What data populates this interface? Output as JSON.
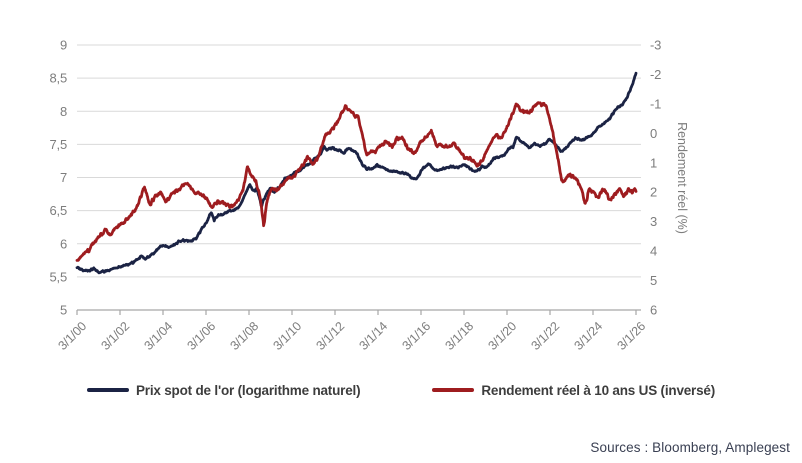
{
  "chart_data": {
    "type": "line",
    "title": "",
    "x_axis": {
      "ticks": [
        {
          "label": "3/1/00",
          "year": 2000.17
        },
        {
          "label": "3/1/02",
          "year": 2002.17
        },
        {
          "label": "3/1/04",
          "year": 2004.17
        },
        {
          "label": "3/1/06",
          "year": 2006.17
        },
        {
          "label": "3/1/08",
          "year": 2008.17
        },
        {
          "label": "3/1/10",
          "year": 2010.17
        },
        {
          "label": "3/1/12",
          "year": 2012.17
        },
        {
          "label": "3/1/14",
          "year": 2014.17
        },
        {
          "label": "3/1/16",
          "year": 2016.17
        },
        {
          "label": "3/1/18",
          "year": 2018.17
        },
        {
          "label": "3/1/20",
          "year": 2020.17
        },
        {
          "label": "3/1/22",
          "year": 2022.17
        },
        {
          "label": "3/1/24",
          "year": 2024.17
        },
        {
          "label": "3/1/26",
          "year": 2026.17
        }
      ],
      "range": [
        2000.17,
        2026.4
      ]
    },
    "left_axis": {
      "label": "",
      "range": [
        5,
        9
      ],
      "ticks": [
        {
          "value": 9,
          "label": "9"
        },
        {
          "value": 8.5,
          "label": "8,5"
        },
        {
          "value": 8,
          "label": "8"
        },
        {
          "value": 7.5,
          "label": "7,5"
        },
        {
          "value": 7,
          "label": "7"
        },
        {
          "value": 6.5,
          "label": "6,5"
        },
        {
          "value": 6,
          "label": "6"
        },
        {
          "value": 5.5,
          "label": "5,5"
        },
        {
          "value": 5,
          "label": "5"
        }
      ]
    },
    "right_axis": {
      "label": "Rendement réel (%)",
      "range": [
        -3,
        6
      ],
      "inverted": true,
      "ticks": [
        {
          "value": -3,
          "label": "-3"
        },
        {
          "value": -2,
          "label": "-2"
        },
        {
          "value": -1,
          "label": "-1"
        },
        {
          "value": 0,
          "label": "0"
        },
        {
          "value": 1,
          "label": "1"
        },
        {
          "value": 2,
          "label": "2"
        },
        {
          "value": 3,
          "label": "3"
        },
        {
          "value": 4,
          "label": "4"
        },
        {
          "value": 5,
          "label": "5"
        },
        {
          "value": 6,
          "label": "6"
        }
      ]
    },
    "grid": true,
    "legend_position": "bottom",
    "colors": {
      "gold": "#1b2344",
      "yield": "#9e1c1f",
      "gridline": "#d9d9d9",
      "axis": "#a6a6a6",
      "tick_text": "#7d7d7d"
    },
    "series": [
      {
        "name": "Prix spot de l'or (logarithme naturel)",
        "color": "#1b2344",
        "axis": "left",
        "points": [
          [
            2000.17,
            5.65
          ],
          [
            2000.4,
            5.61
          ],
          [
            2000.7,
            5.59
          ],
          [
            2000.95,
            5.62
          ],
          [
            2001.2,
            5.57
          ],
          [
            2001.5,
            5.58
          ],
          [
            2001.8,
            5.62
          ],
          [
            2002.1,
            5.64
          ],
          [
            2002.4,
            5.68
          ],
          [
            2002.75,
            5.71
          ],
          [
            2003.0,
            5.77
          ],
          [
            2003.15,
            5.82
          ],
          [
            2003.35,
            5.78
          ],
          [
            2003.6,
            5.82
          ],
          [
            2003.85,
            5.89
          ],
          [
            2004.05,
            5.96
          ],
          [
            2004.3,
            5.98
          ],
          [
            2004.45,
            5.94
          ],
          [
            2004.7,
            5.99
          ],
          [
            2004.95,
            6.04
          ],
          [
            2005.2,
            6.05
          ],
          [
            2005.45,
            6.04
          ],
          [
            2005.7,
            6.08
          ],
          [
            2005.95,
            6.21
          ],
          [
            2006.2,
            6.33
          ],
          [
            2006.4,
            6.48
          ],
          [
            2006.55,
            6.36
          ],
          [
            2006.75,
            6.43
          ],
          [
            2006.95,
            6.44
          ],
          [
            2007.2,
            6.49
          ],
          [
            2007.45,
            6.49
          ],
          [
            2007.7,
            6.55
          ],
          [
            2007.95,
            6.71
          ],
          [
            2008.2,
            6.89
          ],
          [
            2008.35,
            6.79
          ],
          [
            2008.55,
            6.83
          ],
          [
            2008.75,
            6.57
          ],
          [
            2008.85,
            6.66
          ],
          [
            2009.0,
            6.76
          ],
          [
            2009.15,
            6.83
          ],
          [
            2009.35,
            6.79
          ],
          [
            2009.6,
            6.86
          ],
          [
            2009.85,
            6.99
          ],
          [
            2010.1,
            7.01
          ],
          [
            2010.35,
            7.08
          ],
          [
            2010.55,
            7.11
          ],
          [
            2010.8,
            7.18
          ],
          [
            2011.0,
            7.21
          ],
          [
            2011.2,
            7.27
          ],
          [
            2011.45,
            7.33
          ],
          [
            2011.65,
            7.47
          ],
          [
            2011.8,
            7.41
          ],
          [
            2011.95,
            7.45
          ],
          [
            2012.15,
            7.43
          ],
          [
            2012.35,
            7.41
          ],
          [
            2012.6,
            7.37
          ],
          [
            2012.8,
            7.45
          ],
          [
            2013.0,
            7.42
          ],
          [
            2013.2,
            7.35
          ],
          [
            2013.45,
            7.2
          ],
          [
            2013.65,
            7.13
          ],
          [
            2013.9,
            7.14
          ],
          [
            2014.15,
            7.19
          ],
          [
            2014.45,
            7.15
          ],
          [
            2014.75,
            7.09
          ],
          [
            2014.95,
            7.1
          ],
          [
            2015.2,
            7.08
          ],
          [
            2015.5,
            7.05
          ],
          [
            2015.75,
            7.0
          ],
          [
            2015.95,
            6.97
          ],
          [
            2016.2,
            7.11
          ],
          [
            2016.5,
            7.21
          ],
          [
            2016.8,
            7.13
          ],
          [
            2017.0,
            7.11
          ],
          [
            2017.3,
            7.14
          ],
          [
            2017.6,
            7.17
          ],
          [
            2017.9,
            7.15
          ],
          [
            2018.2,
            7.2
          ],
          [
            2018.5,
            7.12
          ],
          [
            2018.75,
            7.09
          ],
          [
            2019.0,
            7.16
          ],
          [
            2019.3,
            7.17
          ],
          [
            2019.55,
            7.29
          ],
          [
            2019.85,
            7.31
          ],
          [
            2020.1,
            7.35
          ],
          [
            2020.25,
            7.43
          ],
          [
            2020.45,
            7.46
          ],
          [
            2020.6,
            7.62
          ],
          [
            2020.8,
            7.56
          ],
          [
            2021.0,
            7.52
          ],
          [
            2021.2,
            7.44
          ],
          [
            2021.45,
            7.51
          ],
          [
            2021.7,
            7.48
          ],
          [
            2021.95,
            7.5
          ],
          [
            2022.15,
            7.58
          ],
          [
            2022.4,
            7.51
          ],
          [
            2022.6,
            7.42
          ],
          [
            2022.75,
            7.39
          ],
          [
            2022.95,
            7.46
          ],
          [
            2023.15,
            7.54
          ],
          [
            2023.35,
            7.6
          ],
          [
            2023.6,
            7.56
          ],
          [
            2023.8,
            7.58
          ],
          [
            2023.95,
            7.62
          ],
          [
            2024.15,
            7.65
          ],
          [
            2024.35,
            7.74
          ],
          [
            2024.55,
            7.78
          ],
          [
            2024.75,
            7.83
          ],
          [
            2024.95,
            7.89
          ],
          [
            2025.1,
            7.97
          ],
          [
            2025.3,
            8.06
          ],
          [
            2025.5,
            8.09
          ],
          [
            2025.7,
            8.17
          ],
          [
            2025.85,
            8.28
          ],
          [
            2026.0,
            8.41
          ],
          [
            2026.1,
            8.5
          ],
          [
            2026.17,
            8.58
          ]
        ]
      },
      {
        "name": "Rendement réel à 10 ans US (inversé)",
        "color": "#9e1c1f",
        "axis": "right",
        "points": [
          [
            2000.17,
            4.35
          ],
          [
            2000.45,
            4.15
          ],
          [
            2000.75,
            3.95
          ],
          [
            2001.0,
            3.65
          ],
          [
            2001.25,
            3.45
          ],
          [
            2001.5,
            3.3
          ],
          [
            2001.75,
            3.45
          ],
          [
            2002.0,
            3.2
          ],
          [
            2002.3,
            3.05
          ],
          [
            2002.6,
            2.8
          ],
          [
            2002.9,
            2.55
          ],
          [
            2003.1,
            2.25
          ],
          [
            2003.3,
            1.8
          ],
          [
            2003.55,
            2.45
          ],
          [
            2003.8,
            2.15
          ],
          [
            2004.05,
            2.0
          ],
          [
            2004.3,
            2.3
          ],
          [
            2004.55,
            2.1
          ],
          [
            2004.8,
            1.95
          ],
          [
            2005.05,
            1.8
          ],
          [
            2005.3,
            1.7
          ],
          [
            2005.6,
            2.0
          ],
          [
            2005.9,
            2.05
          ],
          [
            2006.15,
            2.2
          ],
          [
            2006.45,
            2.5
          ],
          [
            2006.75,
            2.3
          ],
          [
            2007.0,
            2.35
          ],
          [
            2007.3,
            2.5
          ],
          [
            2007.6,
            2.35
          ],
          [
            2007.9,
            1.9
          ],
          [
            2008.1,
            1.15
          ],
          [
            2008.3,
            1.45
          ],
          [
            2008.5,
            1.65
          ],
          [
            2008.7,
            2.2
          ],
          [
            2008.85,
            3.15
          ],
          [
            2009.0,
            2.3
          ],
          [
            2009.2,
            1.85
          ],
          [
            2009.45,
            1.95
          ],
          [
            2009.7,
            1.75
          ],
          [
            2009.95,
            1.55
          ],
          [
            2010.2,
            1.5
          ],
          [
            2010.45,
            1.25
          ],
          [
            2010.7,
            1.05
          ],
          [
            2010.9,
            0.8
          ],
          [
            2011.1,
            1.05
          ],
          [
            2011.35,
            0.85
          ],
          [
            2011.55,
            0.45
          ],
          [
            2011.75,
            0.05
          ],
          [
            2011.95,
            -0.05
          ],
          [
            2012.15,
            -0.25
          ],
          [
            2012.4,
            -0.55
          ],
          [
            2012.65,
            -0.9
          ],
          [
            2012.85,
            -0.75
          ],
          [
            2013.05,
            -0.65
          ],
          [
            2013.25,
            -0.55
          ],
          [
            2013.45,
            0.1
          ],
          [
            2013.65,
            0.75
          ],
          [
            2013.85,
            0.6
          ],
          [
            2014.05,
            0.6
          ],
          [
            2014.3,
            0.4
          ],
          [
            2014.6,
            0.3
          ],
          [
            2014.85,
            0.45
          ],
          [
            2015.05,
            0.2
          ],
          [
            2015.3,
            0.15
          ],
          [
            2015.6,
            0.55
          ],
          [
            2015.9,
            0.7
          ],
          [
            2016.15,
            0.3
          ],
          [
            2016.4,
            0.15
          ],
          [
            2016.65,
            -0.05
          ],
          [
            2016.9,
            0.45
          ],
          [
            2017.15,
            0.4
          ],
          [
            2017.45,
            0.5
          ],
          [
            2017.7,
            0.35
          ],
          [
            2017.95,
            0.55
          ],
          [
            2018.2,
            0.8
          ],
          [
            2018.5,
            0.85
          ],
          [
            2018.8,
            1.1
          ],
          [
            2019.05,
            0.9
          ],
          [
            2019.3,
            0.5
          ],
          [
            2019.6,
            0.05
          ],
          [
            2019.85,
            0.15
          ],
          [
            2020.1,
            -0.05
          ],
          [
            2020.3,
            -0.45
          ],
          [
            2020.6,
            -0.95
          ],
          [
            2020.85,
            -0.8
          ],
          [
            2021.05,
            -0.7
          ],
          [
            2021.3,
            -0.75
          ],
          [
            2021.6,
            -1.05
          ],
          [
            2021.85,
            -0.95
          ],
          [
            2022.0,
            -0.9
          ],
          [
            2022.15,
            -0.5
          ],
          [
            2022.3,
            -0.05
          ],
          [
            2022.5,
            0.7
          ],
          [
            2022.7,
            1.55
          ],
          [
            2022.85,
            1.65
          ],
          [
            2023.0,
            1.4
          ],
          [
            2023.2,
            1.45
          ],
          [
            2023.45,
            1.6
          ],
          [
            2023.65,
            1.9
          ],
          [
            2023.8,
            2.45
          ],
          [
            2024.0,
            1.9
          ],
          [
            2024.2,
            2.0
          ],
          [
            2024.4,
            2.2
          ],
          [
            2024.6,
            1.9
          ],
          [
            2024.8,
            2.05
          ],
          [
            2025.0,
            2.3
          ],
          [
            2025.2,
            2.05
          ],
          [
            2025.4,
            1.9
          ],
          [
            2025.6,
            2.1
          ],
          [
            2025.8,
            1.9
          ],
          [
            2026.0,
            2.0
          ],
          [
            2026.17,
            1.9
          ]
        ]
      }
    ]
  },
  "legend": {
    "items": [
      {
        "label": "Prix spot de l'or (logarithme naturel)",
        "color": "#1b2344"
      },
      {
        "label": "Rendement réel à 10 ans US (inversé)",
        "color": "#9e1c1f"
      }
    ]
  },
  "footer": {
    "sources": "Sources : Bloomberg, Amplegest"
  }
}
